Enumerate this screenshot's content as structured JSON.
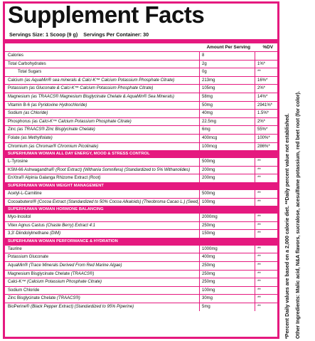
{
  "title": "Supplement Facts",
  "serving_size": "Servings Size: 1 Scoop (9 g)",
  "servings_per_container": "Servings Per Container: 30",
  "col_amount": "Amount Per Serving",
  "col_dv": "%DV",
  "colors": {
    "accent": "#e5197f"
  },
  "rows": [
    {
      "name": "Calories",
      "amount": "8",
      "dv": ""
    },
    {
      "name": "Total Carbohydrates",
      "amount": "2g",
      "dv": "1%*"
    },
    {
      "name": "Total Sugars",
      "amount": "0g",
      "dv": "**",
      "indent": true
    },
    {
      "name": "Calcium",
      "note": "(as AquaMin® sea minerals & Calci-K™ Calcium Potassium Phosphate Citrate)",
      "amount": "213mg",
      "dv": "16%*"
    },
    {
      "name": "Potassium",
      "note": "(as Gluconate & Calci-K™ Calcium Potassium Phosphate Citrate)",
      "amount": "105mg",
      "dv": "2%*"
    },
    {
      "name": "Magnesium",
      "note": "(as TRAACS® Magnesium Bisglycinate Chelate & AquaMin® Sea Minerals)",
      "amount": "58mg",
      "dv": "14%*"
    },
    {
      "name": "Vitamin B-6",
      "note": "(as Pyridoxine Hydrochloride)",
      "amount": "50mg",
      "dv": "2941%*"
    },
    {
      "name": "Sodium",
      "note": "(as Chloride)",
      "amount": "40mg",
      "dv": "1.5%*"
    },
    {
      "name": "Phosphorus",
      "note": "(as Calci-K™ Calcium Potassium Phosphate Citrate)",
      "amount": "22.5mg",
      "dv": "2%*"
    },
    {
      "name": "Zinc",
      "note": "(as TRAACS® Zinc Bisglycinate Chelate)",
      "amount": "6mg",
      "dv": "55%*"
    },
    {
      "name": "Folate",
      "note": "(as Methylfolate)",
      "amount": "400mcg",
      "dv": "100%*"
    },
    {
      "name": "Chromium",
      "note": "(as Chromax® Chromium Picolinate)",
      "amount": "100mcg",
      "dv": "286%*"
    },
    {
      "section": "SUPERHUMAN WOMAN ALL DAY ENERGY, MOOD & STRESS CONTROL"
    },
    {
      "name": "L-Tyrosine",
      "amount": "500mg",
      "dv": "**"
    },
    {
      "name": "KSM-66 Ashwagandha®",
      "note": "(Root Extract) (Withania Somnifera) (Standardized to 5% Withanolides)",
      "amount": "200mg",
      "dv": "**"
    },
    {
      "name": "EnXtra® Alpinia Galanga Rhizome Extract",
      "note": "(Root)",
      "amount": "200mg",
      "dv": "**"
    },
    {
      "section": "SUPERHUMAN WOMAN WEIGHT MANAGEMENT"
    },
    {
      "name": "Acetyl-L-Carnitine",
      "amount": "500mg",
      "dv": "**"
    },
    {
      "name": "Cocoabuterol®",
      "note": "(Cocoa Extract (Standardized to 50% Cocoa Alkaloids) (Theobroma Cacao L.) (Seed)",
      "amount": "100mg",
      "dv": "**"
    },
    {
      "section": "SUPERHUMAN WOMAN HORMONE BALANCING"
    },
    {
      "name": "Myo-Inositol",
      "amount": "2000mg",
      "dv": "**"
    },
    {
      "name": "Vitex Agnus Castus",
      "note": "(Chaste Berry) Extract 4:1",
      "amount": "250mg",
      "dv": "**"
    },
    {
      "name": "3,3'-Diindolylmethane",
      "note": "(DIM)",
      "amount": "150mg",
      "dv": "**"
    },
    {
      "section": "SUPERHUMAN WOMAN PERFORMANCE & HYDRATION"
    },
    {
      "name": "Taurine",
      "amount": "1000mg",
      "dv": "**"
    },
    {
      "name": "Potassium Gluconate",
      "amount": "400mg",
      "dv": "**"
    },
    {
      "name": "AquaMin®",
      "note": "(Trace Minerals Derived From Red Marine Algae)",
      "amount": "250mg",
      "dv": "**"
    },
    {
      "name": "Magnesium Bisglycinate Chelate",
      "note": "(TRAACS®)",
      "amount": "250mg",
      "dv": "**"
    },
    {
      "name": "Calci-K™",
      "note": "(Calcium Potassium Phosphate Citrate)",
      "amount": "250mg",
      "dv": "**"
    },
    {
      "name": "Sodium Chloride",
      "amount": "100mg",
      "dv": "**"
    },
    {
      "name": "Zinc Bisglycinate Chelate",
      "note": "(TRAACS®)",
      "amount": "30mg",
      "dv": "**"
    },
    {
      "name": "BioPerine®",
      "note": "(Black Pepper Extract) (Standardized to 95% Piperine)",
      "amount": "5mg",
      "dv": "**"
    }
  ],
  "footnote": "*Percent Daily values are based on a 2,000 calorie diet. **Daily percent value not established.",
  "other_ingredients": "Other Ingredients: Malic acid, N&A flavors, sucralose, acesulfame potassium, red beet root (for color)."
}
